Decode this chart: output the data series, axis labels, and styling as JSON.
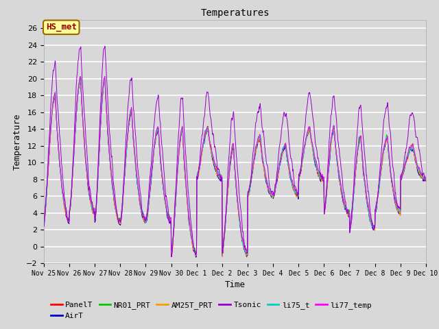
{
  "title": "Temperatures",
  "xlabel": "Time",
  "ylabel": "Temperature",
  "ylim": [
    -2,
    27
  ],
  "yticks": [
    -2,
    0,
    2,
    4,
    6,
    8,
    10,
    12,
    14,
    16,
    18,
    20,
    22,
    24,
    26
  ],
  "bg_color": "#d8d8d8",
  "plot_bg_color": "#d8d8d8",
  "series_colors": {
    "PanelT": "#ff0000",
    "AirT": "#0000cc",
    "NR01_PRT": "#00cc00",
    "AM25T_PRT": "#ff9900",
    "Tsonic": "#9900cc",
    "li75_t": "#00cccc",
    "li77_temp": "#ff00ff"
  },
  "legend_box_label": "HS_met",
  "legend_box_color": "#ffff99",
  "legend_box_border": "#996600",
  "legend_box_text_color": "#990000",
  "xtick_labels": [
    "Nov 25",
    "Nov 26",
    "Nov 27",
    "Nov 28",
    "Nov 29",
    "Nov 30",
    "Dec 1",
    "Dec 2",
    "Dec 3",
    "Dec 4",
    "Dec 5",
    "Dec 6",
    "Dec 7",
    "Dec 8",
    "Dec 9",
    "Dec 10"
  ],
  "font_family": "monospace",
  "figsize": [
    6.4,
    4.8
  ],
  "dpi": 100
}
